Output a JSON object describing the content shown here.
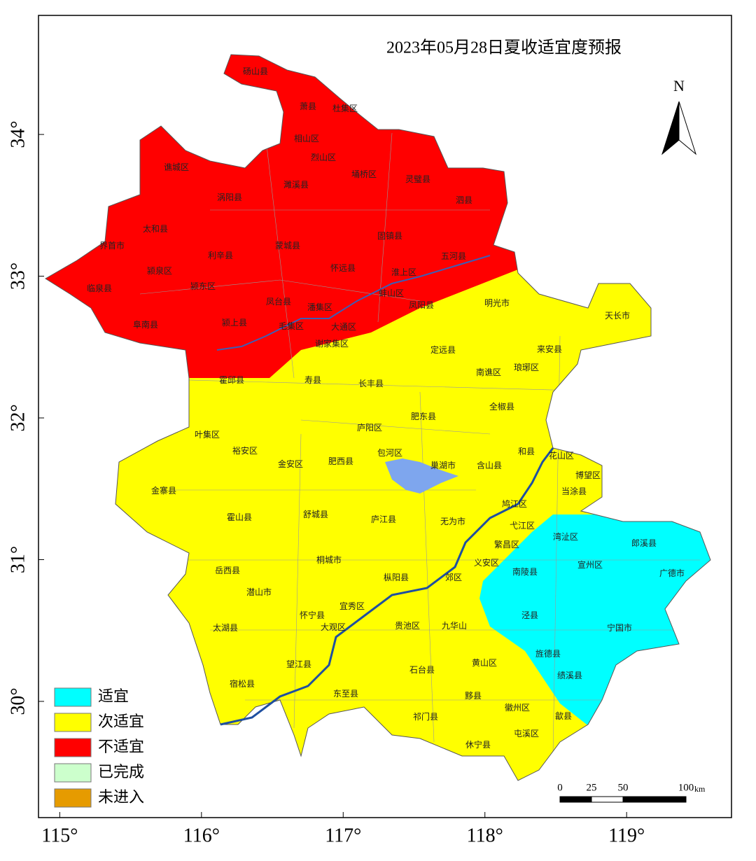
{
  "title": "2023年05月28日夏收适宜度预报",
  "north": "N",
  "xlim": [
    114.85,
    119.74
  ],
  "ylim": [
    29.18,
    34.84
  ],
  "xticks": [
    {
      "value": 115,
      "label": "115°"
    },
    {
      "value": 116,
      "label": "116°"
    },
    {
      "value": 117,
      "label": "117°"
    },
    {
      "value": 118,
      "label": "118°"
    },
    {
      "value": 119,
      "label": "119°"
    }
  ],
  "yticks": [
    {
      "value": 30,
      "label": "30°"
    },
    {
      "value": 31,
      "label": "31°"
    },
    {
      "value": 32,
      "label": "32°"
    },
    {
      "value": 33,
      "label": "33°"
    },
    {
      "value": 34,
      "label": "34°"
    }
  ],
  "legend": [
    {
      "label": "适宜",
      "color": "#00ffff"
    },
    {
      "label": "次适宜",
      "color": "#ffff00"
    },
    {
      "label": "不适宜",
      "color": "#ff0000"
    },
    {
      "label": "已完成",
      "color": "#ccffcc"
    },
    {
      "label": "未进入",
      "color": "#e69b00"
    }
  ],
  "scale_bar": {
    "ticks": [
      0,
      25,
      50,
      100
    ],
    "unit": "km"
  },
  "labels": [
    "砀山县",
    "萧县",
    "杜集区",
    "相山区",
    "烈山区",
    "濉溪县",
    "埇桥区",
    "灵璧县",
    "泗县",
    "谯城区",
    "涡阳县",
    "太和县",
    "界首市",
    "利辛县",
    "蒙城县",
    "怀远县",
    "固镇县",
    "五河县",
    "淮上区",
    "蚌山区",
    "颍泉区",
    "临泉县",
    "颍东区",
    "凤台县",
    "潘集区",
    "凤阳县",
    "明光市",
    "天长市",
    "阜南县",
    "颍上县",
    "毛集区",
    "大通区",
    "谢家集区",
    "定远县",
    "来安县",
    "南谯区",
    "琅琊区",
    "霍邱县",
    "寿县",
    "长丰县",
    "全椒县",
    "肥东县",
    "叶集区",
    "庐阳区",
    "裕安区",
    "包河区",
    "巢湖市",
    "和县",
    "花山区",
    "肥西县",
    "金安区",
    "含山县",
    "博望区",
    "金寨县",
    "当涂县",
    "鸠江区",
    "霍山县",
    "舒城县",
    "庐江县",
    "无为市",
    "弋江区",
    "湾沚区",
    "郎溪县",
    "繁昌区",
    "宣州区",
    "义安区",
    "岳西县",
    "桐城市",
    "南陵县",
    "广德市",
    "枞阳县",
    "郊区",
    "潜山市",
    "宜秀区",
    "怀宁县",
    "泾县",
    "贵池区",
    "九华山",
    "大观区",
    "太湖县",
    "宁国市",
    "黄山区",
    "旌德县",
    "望江县",
    "石台县",
    "绩溪县",
    "宿松县",
    "东至县",
    "黟县",
    "徽州区",
    "歙县",
    "祁门县",
    "屯溪区",
    "休宁县"
  ]
}
